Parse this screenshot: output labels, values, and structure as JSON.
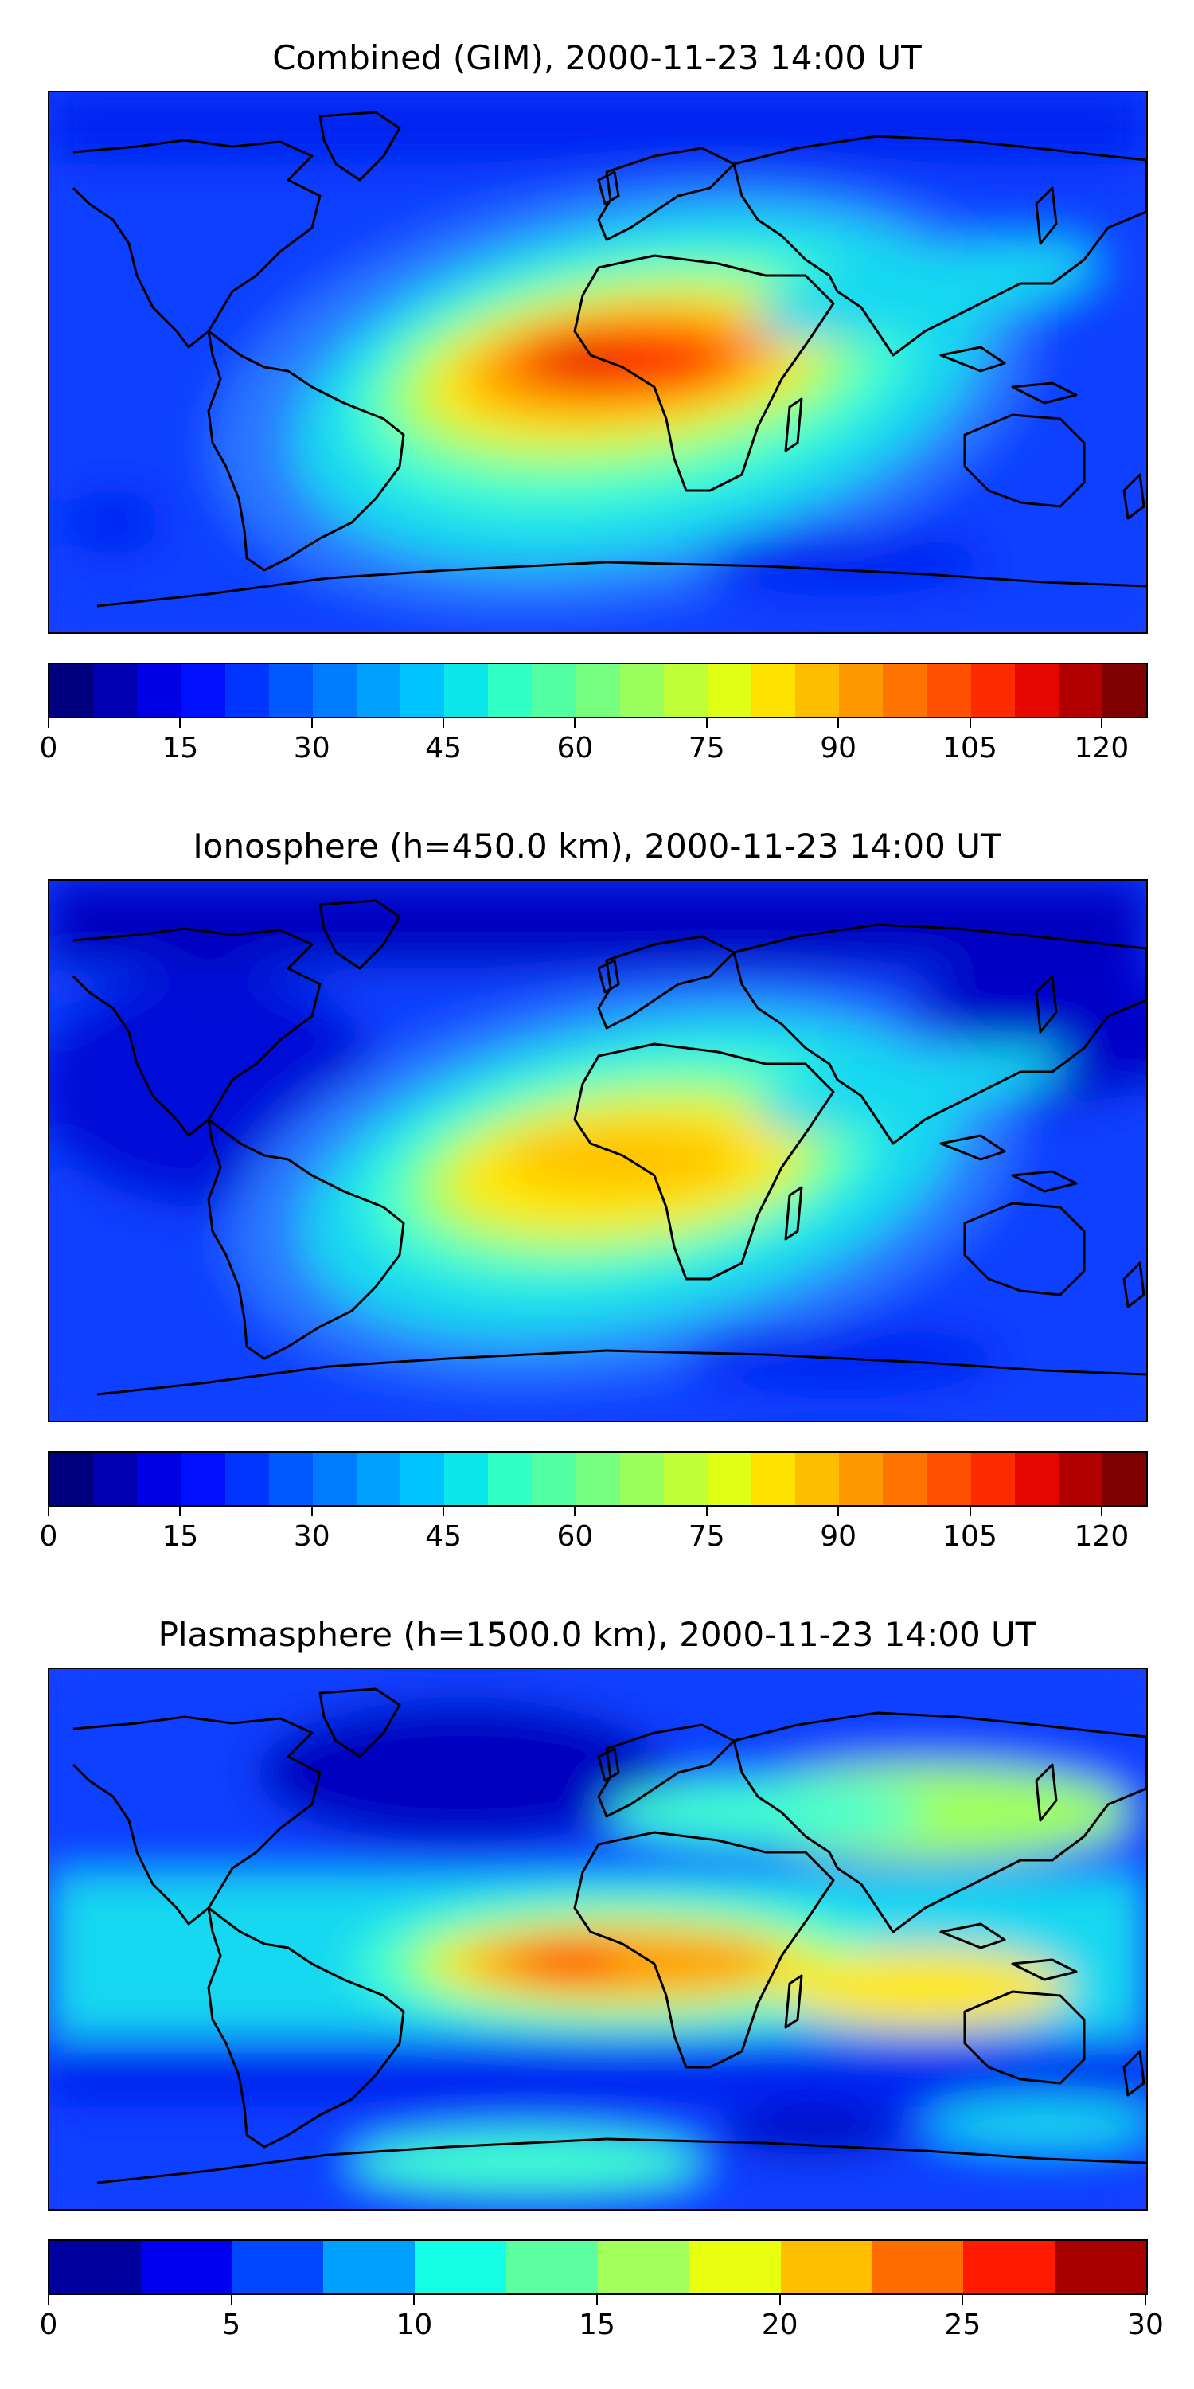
{
  "panels": [
    {
      "title": "Combined (GIM), 2000-11-23 14:00 UT",
      "colorbar": {
        "min": 0,
        "max": 125,
        "ticks": [
          "0",
          "15",
          "30",
          "45",
          "60",
          "75",
          "90",
          "105",
          "120"
        ],
        "tick_values": [
          0,
          15,
          30,
          45,
          60,
          75,
          90,
          105,
          120
        ],
        "colors": [
          "#00007f",
          "#0000b2",
          "#0000e5",
          "#0010ff",
          "#0034ff",
          "#0058ff",
          "#007cff",
          "#00a0ff",
          "#00c4ff",
          "#0ce8ea",
          "#30ffc6",
          "#53ffa3",
          "#77ff7f",
          "#9aff5c",
          "#beff38",
          "#e1ff15",
          "#ffe200",
          "#ffbd00",
          "#ff9900",
          "#ff7400",
          "#ff5000",
          "#ff2b00",
          "#e50700",
          "#b20000",
          "#7f0000"
        ]
      }
    },
    {
      "title": "Ionosphere  (h=450.0 km), 2000-11-23 14:00 UT",
      "colorbar": {
        "min": 0,
        "max": 125,
        "ticks": [
          "0",
          "15",
          "30",
          "45",
          "60",
          "75",
          "90",
          "105",
          "120"
        ],
        "tick_values": [
          0,
          15,
          30,
          45,
          60,
          75,
          90,
          105,
          120
        ],
        "colors": [
          "#00007f",
          "#0000b2",
          "#0000e5",
          "#0010ff",
          "#0034ff",
          "#0058ff",
          "#007cff",
          "#00a0ff",
          "#00c4ff",
          "#0ce8ea",
          "#30ffc6",
          "#53ffa3",
          "#77ff7f",
          "#9aff5c",
          "#beff38",
          "#e1ff15",
          "#ffe200",
          "#ffbd00",
          "#ff9900",
          "#ff7400",
          "#ff5000",
          "#ff2b00",
          "#e50700",
          "#b20000",
          "#7f0000"
        ]
      }
    },
    {
      "title": "Plasmasphere (h=1500.0 km), 2000-11-23 14:00 UT",
      "colorbar": {
        "min": 0,
        "max": 30,
        "ticks": [
          "0",
          "5",
          "10",
          "15",
          "20",
          "25",
          "30"
        ],
        "tick_values": [
          0,
          5,
          10,
          15,
          20,
          25,
          30
        ],
        "colors": [
          "#00009f",
          "#0000f0",
          "#0048ff",
          "#00a0ff",
          "#12ffe6",
          "#5cffa0",
          "#a3ff5a",
          "#e8ff10",
          "#ffbf00",
          "#ff6c00",
          "#ff1a00",
          "#a80000"
        ]
      }
    }
  ],
  "palette": {
    "deep_blue": "#0000a8",
    "blue": "#1040ff",
    "mid_blue": "#2a78ff",
    "cyan": "#18d8f0",
    "aqua": "#40ffd0",
    "green": "#a0ff60",
    "yellow": "#ffe800",
    "orange": "#ff9a00",
    "red": "#ff2800",
    "dark_red": "#e00000",
    "coast": "#000000"
  }
}
